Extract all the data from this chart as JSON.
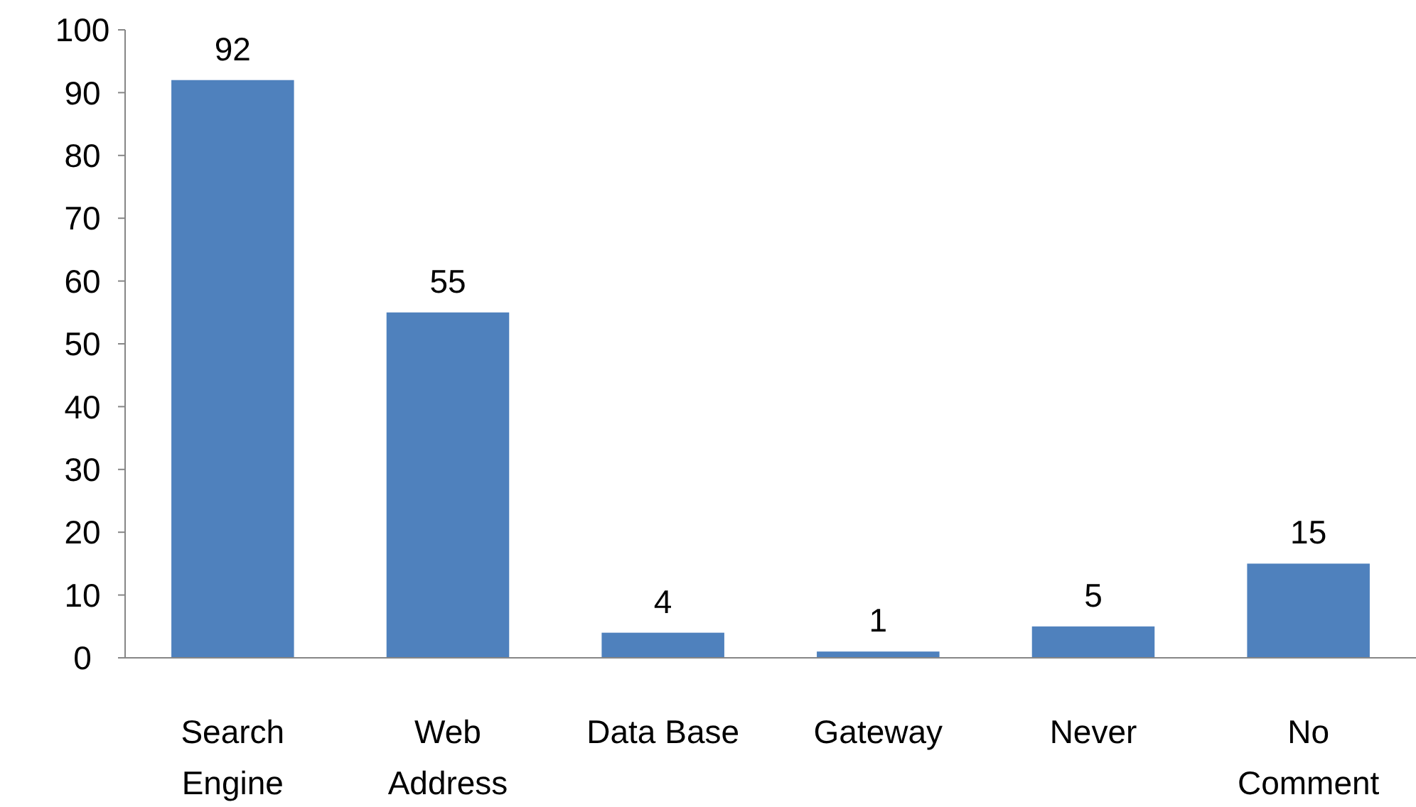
{
  "chart_data": {
    "type": "bar",
    "categories": [
      "Search Engine",
      "Web Address",
      "Data Base",
      "Gateway",
      "Never",
      "No Comment"
    ],
    "values": [
      92,
      55,
      4,
      1,
      5,
      15
    ],
    "color": "#4f81bd",
    "ylim": [
      0,
      100
    ],
    "yticks": [
      0,
      10,
      20,
      30,
      40,
      50,
      60,
      70,
      80,
      90,
      100
    ],
    "data_labels": true
  }
}
